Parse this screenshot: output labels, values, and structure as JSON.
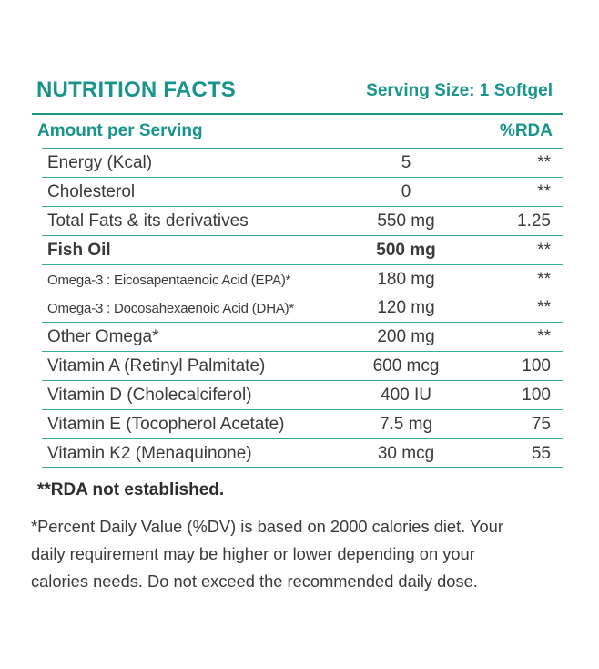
{
  "header": {
    "title": "NUTRITION FACTS",
    "serving_size": "Serving Size: 1 Softgel"
  },
  "table": {
    "col_amount_header": "Amount per Serving",
    "col_rda_header": "%RDA",
    "rows": [
      {
        "name": "Energy (Kcal)",
        "amount": "5",
        "rda": "**"
      },
      {
        "name": "Cholesterol",
        "amount": "0",
        "rda": "**"
      },
      {
        "name": "Total Fats & its derivatives",
        "amount": "550 mg",
        "rda": "1.25"
      },
      {
        "name": "Fish Oil",
        "amount": "500 mg",
        "rda": "**"
      },
      {
        "name": "Omega-3 : Eicosapentaenoic Acid (EPA)*",
        "amount": "180 mg",
        "rda": "**"
      },
      {
        "name": "Omega-3 : Docosahexaenoic Acid (DHA)*",
        "amount": "120 mg",
        "rda": "**"
      },
      {
        "name": "Other Omega*",
        "amount": "200 mg",
        "rda": "**"
      },
      {
        "name": "Vitamin A (Retinyl Palmitate)",
        "amount": "600 mcg",
        "rda": "100"
      },
      {
        "name": "Vitamin D (Cholecalciferol)",
        "amount": "400 IU",
        "rda": "100"
      },
      {
        "name": "Vitamin E (Tocopherol Acetate)",
        "amount": "7.5 mg",
        "rda": "75"
      },
      {
        "name": "Vitamin K2 (Menaquinone)",
        "amount": "30 mcg",
        "rda": "55"
      }
    ]
  },
  "footnote": "**RDA not established.",
  "disclaimer": {
    "line1": "*Percent Daily Value (%DV) is based on 2000 calories diet. Your",
    "line2": "daily requirement may be higher or lower depending on your",
    "line3": "calories needs. Do not exceed the recommended daily dose."
  },
  "colors": {
    "accent": "#17958c",
    "rule": "#3aa89f",
    "text": "#3a3a3a"
  }
}
